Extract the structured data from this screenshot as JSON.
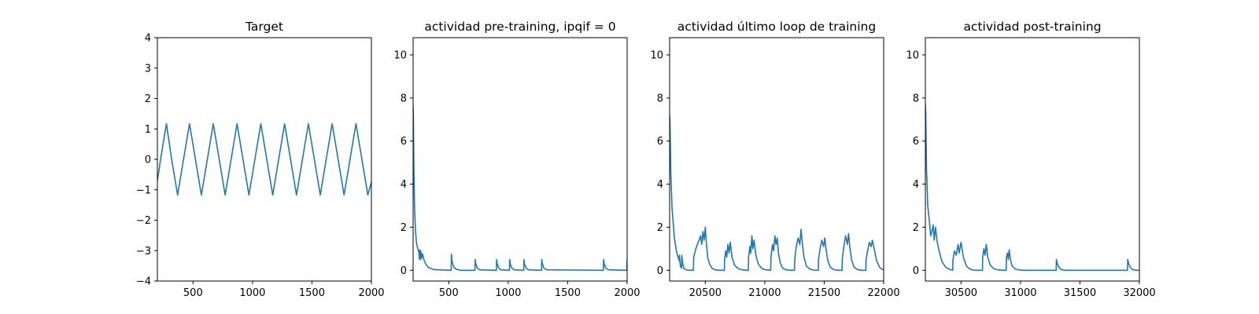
{
  "chart_data": [
    {
      "type": "line",
      "title": "Target",
      "xlim": [
        200,
        2000
      ],
      "ylim": [
        -4,
        4
      ],
      "xticks": [
        500,
        1000,
        1500,
        2000
      ],
      "xtick_labels": [
        "500",
        "1000",
        "1500",
        "2000"
      ],
      "yticks": [
        -4,
        -3,
        -2,
        -1,
        0,
        1,
        2,
        3,
        4
      ],
      "ytick_labels": [
        "−4",
        "−3",
        "−2",
        "−1",
        "0",
        "1",
        "2",
        "3",
        "4"
      ],
      "grid": false,
      "color": "#1f77b4",
      "series": [
        {
          "x": [
            200,
            227,
            276,
            320,
            370,
            420,
            470,
            520,
            570,
            620,
            670,
            720,
            770,
            820,
            870,
            920,
            970,
            1020,
            1070,
            1120,
            1170,
            1220,
            1270,
            1320,
            1370,
            1420,
            1470,
            1520,
            1570,
            1620,
            1670,
            1720,
            1770,
            1820,
            1870,
            1920,
            1970,
            2000
          ],
          "y": [
            -0.7,
            0.0,
            1.17,
            0.0,
            -1.17,
            0.0,
            1.17,
            0.0,
            -1.17,
            0.0,
            1.17,
            0.0,
            -1.17,
            0.0,
            1.17,
            0.0,
            -1.17,
            0.0,
            1.17,
            0.0,
            -1.17,
            0.0,
            1.17,
            0.0,
            -1.17,
            0.0,
            1.17,
            0.0,
            -1.17,
            0.0,
            1.17,
            0.0,
            -1.17,
            0.0,
            1.17,
            0.0,
            -1.17,
            -0.75
          ]
        }
      ]
    },
    {
      "type": "line",
      "title": "actividad pre-training, ipqif = 0",
      "xlim": [
        200,
        2000
      ],
      "ylim": [
        -0.5,
        10.8
      ],
      "xticks": [
        500,
        1000,
        1500,
        2000
      ],
      "xtick_labels": [
        "500",
        "1000",
        "1500",
        "2000"
      ],
      "yticks": [
        0,
        2,
        4,
        6,
        8,
        10
      ],
      "ytick_labels": [
        "0",
        "2",
        "4",
        "6",
        "8",
        "10"
      ],
      "grid": false,
      "color": "#1f77b4",
      "series": [
        {
          "x": [
            200,
            202,
            206,
            212,
            220,
            230,
            242,
            250,
            252,
            256,
            260,
            263,
            266,
            270,
            275,
            280,
            290,
            305,
            330,
            380,
            520,
            522,
            526,
            532,
            545,
            565,
            600,
            720,
            722,
            727,
            740,
            760,
            900,
            902,
            907,
            920,
            940,
            1010,
            1012,
            1017,
            1030,
            1050,
            1130,
            1132,
            1137,
            1150,
            1170,
            1280,
            1282,
            1287,
            1300,
            1325,
            1800,
            1802,
            1807,
            1820,
            1845,
            1998,
            2000
          ],
          "y": [
            7.6,
            7.2,
            4.8,
            3.0,
            1.8,
            1.2,
            0.95,
            0.8,
            0.5,
            0.95,
            0.6,
            0.9,
            0.5,
            0.8,
            0.6,
            0.75,
            0.5,
            0.3,
            0.12,
            0.03,
            0.0,
            0.75,
            0.5,
            0.3,
            0.12,
            0.04,
            0.0,
            0.0,
            0.5,
            0.3,
            0.1,
            0.02,
            0.0,
            0.5,
            0.3,
            0.1,
            0.02,
            0.0,
            0.5,
            0.3,
            0.1,
            0.02,
            0.0,
            0.5,
            0.3,
            0.1,
            0.02,
            0.0,
            0.5,
            0.3,
            0.1,
            0.02,
            0.0,
            0.5,
            0.3,
            0.1,
            0.02,
            0.0,
            0.5
          ]
        }
      ]
    },
    {
      "type": "line",
      "title": "actividad último loop de training",
      "xlim": [
        20200,
        22000
      ],
      "ylim": [
        -0.5,
        10.8
      ],
      "xticks": [
        20500,
        21000,
        21500,
        22000
      ],
      "xtick_labels": [
        "20500",
        "21000",
        "21500",
        "22000"
      ],
      "yticks": [
        0,
        2,
        4,
        6,
        8,
        10
      ],
      "ytick_labels": [
        "0",
        "2",
        "4",
        "6",
        "8",
        "10"
      ],
      "grid": false,
      "color": "#1f77b4",
      "series": [
        {
          "x": [
            20200,
            20203,
            20210,
            20220,
            20240,
            20260,
            20280,
            20282,
            20290,
            20300,
            20302,
            20310,
            20320,
            20340,
            20360,
            20400,
            20402,
            20420,
            20440,
            20460,
            20470,
            20480,
            20490,
            20500,
            20510,
            20520,
            20535,
            20555,
            20580,
            20620,
            20660,
            20662,
            20672,
            20680,
            20690,
            20700,
            20710,
            20725,
            20745,
            20775,
            20810,
            20862,
            20864,
            20875,
            20882,
            20892,
            20900,
            20910,
            20925,
            20945,
            20975,
            21010,
            21050,
            21052,
            21065,
            21075,
            21085,
            21095,
            21105,
            21115,
            21130,
            21150,
            21180,
            21220,
            21250,
            21252,
            21265,
            21280,
            21295,
            21305,
            21315,
            21330,
            21350,
            21380,
            21420,
            21450,
            21452,
            21465,
            21480,
            21495,
            21505,
            21515,
            21530,
            21550,
            21580,
            21620,
            21650,
            21652,
            21665,
            21680,
            21695,
            21705,
            21715,
            21730,
            21750,
            21780,
            21820,
            21850,
            21852,
            21865,
            21880,
            21895,
            21905,
            21920,
            21940,
            21965,
            21985,
            22000
          ],
          "y": [
            7.2,
            6.8,
            4.5,
            2.9,
            1.5,
            0.8,
            0.45,
            0.7,
            0.2,
            0.1,
            0.7,
            0.3,
            0.08,
            0.02,
            0.0,
            0.0,
            0.6,
            1.0,
            1.3,
            1.6,
            1.2,
            1.8,
            1.4,
            2.0,
            1.2,
            0.6,
            0.3,
            0.1,
            0.02,
            0.0,
            0.0,
            0.5,
            0.9,
            0.6,
            1.2,
            0.8,
            1.3,
            0.6,
            0.25,
            0.08,
            0.02,
            0.0,
            0.6,
            1.1,
            0.8,
            1.6,
            1.0,
            1.4,
            0.7,
            0.3,
            0.08,
            0.02,
            0.0,
            0.6,
            1.2,
            0.9,
            1.6,
            1.2,
            1.5,
            0.8,
            0.35,
            0.1,
            0.02,
            0.0,
            0.0,
            0.5,
            1.1,
            1.5,
            1.2,
            1.9,
            1.3,
            0.6,
            0.2,
            0.05,
            0.0,
            0.0,
            0.5,
            1.0,
            1.4,
            1.1,
            1.5,
            1.0,
            0.45,
            0.15,
            0.03,
            0.0,
            0.0,
            0.5,
            1.1,
            1.6,
            1.2,
            1.7,
            1.1,
            0.5,
            0.15,
            0.03,
            0.0,
            0.0,
            0.5,
            0.9,
            1.3,
            1.1,
            1.4,
            1.0,
            0.45,
            0.15,
            0.05,
            0.02
          ]
        }
      ]
    },
    {
      "type": "line",
      "title": "actividad post-training",
      "xlim": [
        30200,
        32000
      ],
      "ylim": [
        -0.5,
        10.8
      ],
      "xticks": [
        30500,
        31000,
        31500,
        32000
      ],
      "xtick_labels": [
        "30500",
        "31000",
        "31500",
        "32000"
      ],
      "yticks": [
        0,
        2,
        4,
        6,
        8,
        10
      ],
      "ytick_labels": [
        "0",
        "2",
        "4",
        "6",
        "8",
        "10"
      ],
      "grid": false,
      "color": "#1f77b4",
      "series": [
        {
          "x": [
            30200,
            30203,
            30210,
            30220,
            30235,
            30245,
            30255,
            30265,
            30275,
            30285,
            30300,
            30320,
            30340,
            30370,
            30400,
            30430,
            30432,
            30445,
            30460,
            30475,
            30485,
            30500,
            30520,
            30545,
            30575,
            30610,
            30650,
            30680,
            30682,
            30692,
            30702,
            30712,
            30725,
            30745,
            30775,
            30810,
            30860,
            30880,
            30882,
            30890,
            30898,
            30905,
            30915,
            30930,
            30955,
            30985,
            31030,
            31300,
            31302,
            31310,
            31325,
            31345,
            31375,
            31410,
            31900,
            31902,
            31910,
            31925,
            31945,
            31975,
            32000
          ],
          "y": [
            7.7,
            7.3,
            4.6,
            3.0,
            2.2,
            1.6,
            1.8,
            2.1,
            1.4,
            2.0,
            1.3,
            0.8,
            0.4,
            0.15,
            0.05,
            0.0,
            0.5,
            0.9,
            0.7,
            1.2,
            0.8,
            1.3,
            0.6,
            0.2,
            0.05,
            0.0,
            0.0,
            0.0,
            0.6,
            1.0,
            0.7,
            1.2,
            0.6,
            0.25,
            0.07,
            0.02,
            0.0,
            0.0,
            0.6,
            0.8,
            0.5,
            0.95,
            0.5,
            0.2,
            0.06,
            0.02,
            0.0,
            0.0,
            0.5,
            0.3,
            0.12,
            0.03,
            0.0,
            0.0,
            0.0,
            0.5,
            0.3,
            0.12,
            0.03,
            0.0,
            0.0
          ]
        }
      ]
    }
  ]
}
